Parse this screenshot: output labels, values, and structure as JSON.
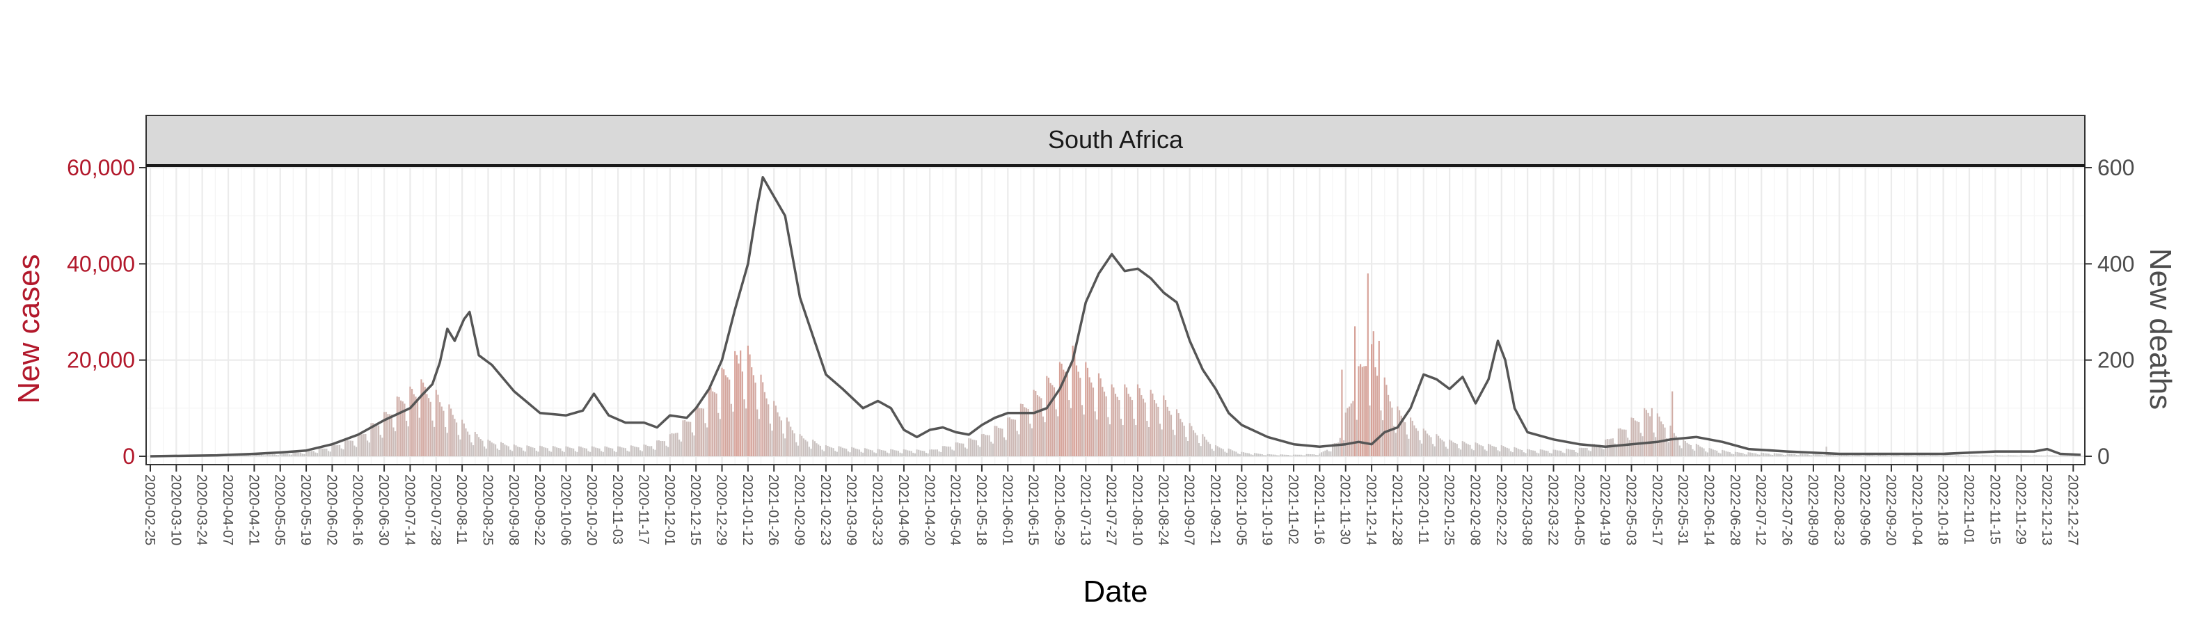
{
  "chart_data": {
    "type": "bar+line",
    "facet_title": "South Africa",
    "xlabel": "Date",
    "ylabel_left": "New cases",
    "ylabel_right": "New deaths",
    "ylim_left": [
      0,
      60000
    ],
    "ylim_right": [
      0,
      600
    ],
    "yticks_left": [
      "0",
      "20,000",
      "40,000",
      "60,000"
    ],
    "yticks_right": [
      "0",
      "200",
      "400",
      "600"
    ],
    "grid": true,
    "x_range": [
      "2020-02-25",
      "2022-12-31"
    ],
    "x_ticks": [
      "2020-02-25",
      "2020-03-10",
      "2020-03-24",
      "2020-04-07",
      "2020-04-21",
      "2020-05-05",
      "2020-05-19",
      "2020-06-02",
      "2020-06-16",
      "2020-06-30",
      "2020-07-14",
      "2020-07-28",
      "2020-08-11",
      "2020-08-25",
      "2020-09-08",
      "2020-09-22",
      "2020-10-06",
      "2020-10-20",
      "2020-11-03",
      "2020-11-17",
      "2020-12-01",
      "2020-12-15",
      "2020-12-29",
      "2021-01-12",
      "2021-01-26",
      "2021-02-09",
      "2021-02-23",
      "2021-03-09",
      "2021-03-23",
      "2021-04-06",
      "2021-04-20",
      "2021-05-04",
      "2021-05-18",
      "2021-06-01",
      "2021-06-15",
      "2021-06-29",
      "2021-07-13",
      "2021-07-27",
      "2021-08-10",
      "2021-08-24",
      "2021-09-07",
      "2021-09-21",
      "2021-10-05",
      "2021-10-19",
      "2021-11-02",
      "2021-11-16",
      "2021-11-30",
      "2021-12-14",
      "2021-12-28",
      "2022-01-11",
      "2022-01-25",
      "2022-02-08",
      "2022-02-22",
      "2022-03-08",
      "2022-03-22",
      "2022-04-05",
      "2022-04-19",
      "2022-05-03",
      "2022-05-17",
      "2022-05-31",
      "2022-06-14",
      "2022-06-28",
      "2022-07-12",
      "2022-07-26",
      "2022-08-09",
      "2022-08-23",
      "2022-09-06",
      "2022-09-20",
      "2022-10-04",
      "2022-10-18",
      "2022-11-01",
      "2022-11-15",
      "2022-11-29",
      "2022-12-13",
      "2022-12-27"
    ],
    "new_cases_series": {
      "name": "New cases",
      "color": "#d6a59e",
      "points": [
        [
          "2020-02-25",
          0
        ],
        [
          "2020-03-15",
          50
        ],
        [
          "2020-04-01",
          150
        ],
        [
          "2020-04-20",
          300
        ],
        [
          "2020-05-05",
          500
        ],
        [
          "2020-05-20",
          1000
        ],
        [
          "2020-06-02",
          2000
        ],
        [
          "2020-06-16",
          4000
        ],
        [
          "2020-06-30",
          8000
        ],
        [
          "2020-07-10",
          12000
        ],
        [
          "2020-07-20",
          13500
        ],
        [
          "2020-07-28",
          12000
        ],
        [
          "2020-08-05",
          9000
        ],
        [
          "2020-08-15",
          5000
        ],
        [
          "2020-08-25",
          3000
        ],
        [
          "2020-09-10",
          2000
        ],
        [
          "2020-10-06",
          1800
        ],
        [
          "2020-11-03",
          1800
        ],
        [
          "2020-11-20",
          2200
        ],
        [
          "2020-12-01",
          4000
        ],
        [
          "2020-12-15",
          9000
        ],
        [
          "2020-12-29",
          16000
        ],
        [
          "2021-01-05",
          19000
        ],
        [
          "2021-01-12",
          20000
        ],
        [
          "2021-01-20",
          14000
        ],
        [
          "2021-01-26",
          10000
        ],
        [
          "2021-02-09",
          4000
        ],
        [
          "2021-02-23",
          2000
        ],
        [
          "2021-03-23",
          1300
        ],
        [
          "2021-04-20",
          1200
        ],
        [
          "2021-05-04",
          2500
        ],
        [
          "2021-05-18",
          4000
        ],
        [
          "2021-06-01",
          7000
        ],
        [
          "2021-06-15",
          12000
        ],
        [
          "2021-06-29",
          17000
        ],
        [
          "2021-07-05",
          20000
        ],
        [
          "2021-07-13",
          17000
        ],
        [
          "2021-07-27",
          13000
        ],
        [
          "2021-08-10",
          13000
        ],
        [
          "2021-08-24",
          11000
        ],
        [
          "2021-09-07",
          6000
        ],
        [
          "2021-09-21",
          2000
        ],
        [
          "2021-10-05",
          800
        ],
        [
          "2021-10-19",
          400
        ],
        [
          "2021-11-02",
          300
        ],
        [
          "2021-11-16",
          500
        ],
        [
          "2021-11-26",
          3000
        ],
        [
          "2021-12-05",
          14000
        ],
        [
          "2021-12-12",
          22000
        ],
        [
          "2021-12-20",
          15000
        ],
        [
          "2021-12-28",
          9000
        ],
        [
          "2022-01-11",
          5000
        ],
        [
          "2022-01-25",
          3000
        ],
        [
          "2022-02-08",
          2500
        ],
        [
          "2022-02-22",
          2000
        ],
        [
          "2022-03-08",
          1300
        ],
        [
          "2022-03-22",
          1200
        ],
        [
          "2022-04-05",
          1500
        ],
        [
          "2022-04-19",
          3000
        ],
        [
          "2022-05-03",
          7000
        ],
        [
          "2022-05-12",
          9000
        ],
        [
          "2022-05-20",
          7000
        ],
        [
          "2022-05-31",
          3000
        ],
        [
          "2022-06-14",
          1500
        ],
        [
          "2022-06-28",
          800
        ],
        [
          "2022-07-26",
          500
        ],
        [
          "2022-09-06",
          300
        ],
        [
          "2022-10-04",
          200
        ],
        [
          "2022-11-01",
          200
        ],
        [
          "2022-12-27",
          150
        ]
      ],
      "spikes": [
        [
          "2020-07-20",
          16000
        ],
        [
          "2021-01-08",
          22000
        ],
        [
          "2021-07-06",
          23000
        ],
        [
          "2021-11-28",
          18000
        ],
        [
          "2021-12-05",
          27000
        ],
        [
          "2021-12-12",
          38000
        ],
        [
          "2021-12-15",
          26000
        ],
        [
          "2021-12-18",
          24000
        ],
        [
          "2022-05-10",
          10000
        ],
        [
          "2022-05-14",
          10000
        ],
        [
          "2022-05-25",
          13500
        ],
        [
          "2022-08-16",
          2000
        ]
      ]
    },
    "new_deaths_series": {
      "name": "New deaths",
      "color": "#555555",
      "points": [
        [
          "2020-02-25",
          0
        ],
        [
          "2020-04-01",
          2
        ],
        [
          "2020-04-21",
          5
        ],
        [
          "2020-05-05",
          8
        ],
        [
          "2020-05-19",
          12
        ],
        [
          "2020-06-02",
          25
        ],
        [
          "2020-06-16",
          45
        ],
        [
          "2020-06-30",
          75
        ],
        [
          "2020-07-14",
          100
        ],
        [
          "2020-07-21",
          130
        ],
        [
          "2020-07-26",
          150
        ],
        [
          "2020-07-30",
          195
        ],
        [
          "2020-08-03",
          265
        ],
        [
          "2020-08-07",
          240
        ],
        [
          "2020-08-12",
          285
        ],
        [
          "2020-08-15",
          300
        ],
        [
          "2020-08-20",
          210
        ],
        [
          "2020-08-27",
          190
        ],
        [
          "2020-09-08",
          135
        ],
        [
          "2020-09-22",
          90
        ],
        [
          "2020-10-06",
          85
        ],
        [
          "2020-10-15",
          95
        ],
        [
          "2020-10-21",
          130
        ],
        [
          "2020-10-29",
          85
        ],
        [
          "2020-11-07",
          70
        ],
        [
          "2020-11-17",
          70
        ],
        [
          "2020-11-24",
          60
        ],
        [
          "2020-12-01",
          85
        ],
        [
          "2020-12-10",
          80
        ],
        [
          "2020-12-15",
          100
        ],
        [
          "2020-12-22",
          140
        ],
        [
          "2020-12-29",
          200
        ],
        [
          "2021-01-05",
          305
        ],
        [
          "2021-01-12",
          400
        ],
        [
          "2021-01-17",
          520
        ],
        [
          "2021-01-20",
          580
        ],
        [
          "2021-01-23",
          560
        ],
        [
          "2021-01-26",
          540
        ],
        [
          "2021-02-01",
          500
        ],
        [
          "2021-02-09",
          330
        ],
        [
          "2021-02-16",
          250
        ],
        [
          "2021-02-23",
          170
        ],
        [
          "2021-03-04",
          140
        ],
        [
          "2021-03-15",
          100
        ],
        [
          "2021-03-23",
          115
        ],
        [
          "2021-03-30",
          100
        ],
        [
          "2021-04-06",
          55
        ],
        [
          "2021-04-13",
          40
        ],
        [
          "2021-04-20",
          55
        ],
        [
          "2021-04-27",
          60
        ],
        [
          "2021-05-04",
          50
        ],
        [
          "2021-05-11",
          45
        ],
        [
          "2021-05-18",
          65
        ],
        [
          "2021-05-25",
          80
        ],
        [
          "2021-06-01",
          90
        ],
        [
          "2021-06-15",
          90
        ],
        [
          "2021-06-22",
          100
        ],
        [
          "2021-06-29",
          140
        ],
        [
          "2021-07-06",
          200
        ],
        [
          "2021-07-13",
          320
        ],
        [
          "2021-07-20",
          380
        ],
        [
          "2021-07-27",
          420
        ],
        [
          "2021-08-03",
          385
        ],
        [
          "2021-08-10",
          390
        ],
        [
          "2021-08-17",
          370
        ],
        [
          "2021-08-24",
          340
        ],
        [
          "2021-08-31",
          320
        ],
        [
          "2021-09-07",
          240
        ],
        [
          "2021-09-14",
          180
        ],
        [
          "2021-09-21",
          140
        ],
        [
          "2021-09-28",
          90
        ],
        [
          "2021-10-05",
          65
        ],
        [
          "2021-10-19",
          40
        ],
        [
          "2021-11-02",
          25
        ],
        [
          "2021-11-16",
          20
        ],
        [
          "2021-11-30",
          25
        ],
        [
          "2021-12-07",
          30
        ],
        [
          "2021-12-14",
          25
        ],
        [
          "2021-12-21",
          50
        ],
        [
          "2021-12-28",
          60
        ],
        [
          "2022-01-04",
          100
        ],
        [
          "2022-01-11",
          170
        ],
        [
          "2022-01-18",
          160
        ],
        [
          "2022-01-25",
          140
        ],
        [
          "2022-02-01",
          165
        ],
        [
          "2022-02-08",
          110
        ],
        [
          "2022-02-15",
          160
        ],
        [
          "2022-02-20",
          240
        ],
        [
          "2022-02-24",
          200
        ],
        [
          "2022-03-01",
          100
        ],
        [
          "2022-03-08",
          50
        ],
        [
          "2022-03-22",
          35
        ],
        [
          "2022-04-05",
          25
        ],
        [
          "2022-04-19",
          20
        ],
        [
          "2022-05-03",
          25
        ],
        [
          "2022-05-17",
          30
        ],
        [
          "2022-05-24",
          35
        ],
        [
          "2022-06-07",
          40
        ],
        [
          "2022-06-21",
          30
        ],
        [
          "2022-07-05",
          15
        ],
        [
          "2022-07-26",
          10
        ],
        [
          "2022-08-23",
          5
        ],
        [
          "2022-09-20",
          5
        ],
        [
          "2022-10-18",
          5
        ],
        [
          "2022-11-15",
          10
        ],
        [
          "2022-12-06",
          10
        ],
        [
          "2022-12-13",
          15
        ],
        [
          "2022-12-20",
          5
        ],
        [
          "2022-12-31",
          3
        ]
      ]
    }
  }
}
